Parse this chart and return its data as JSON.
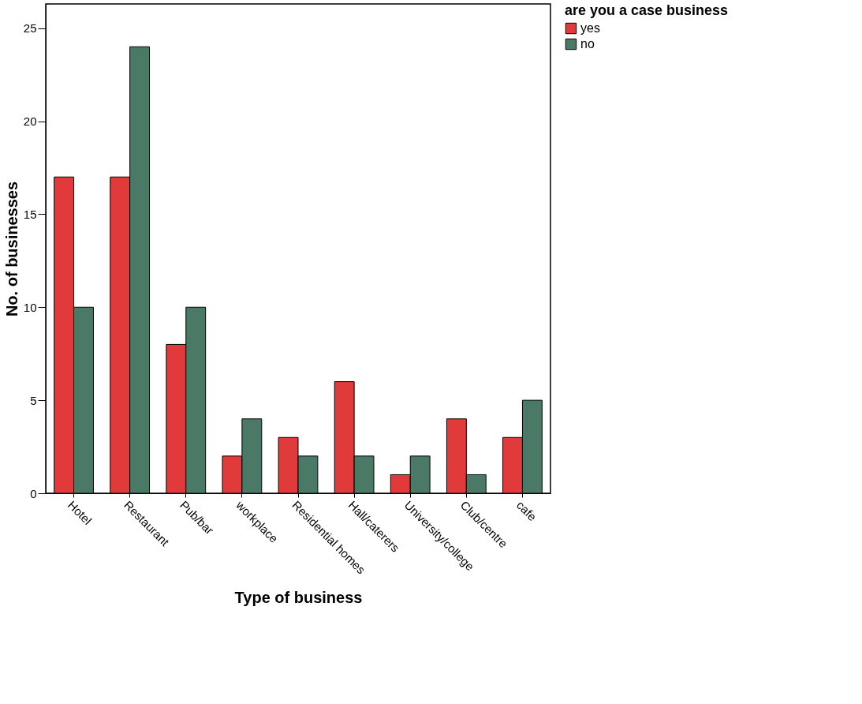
{
  "chart_data": {
    "type": "bar",
    "xlabel": "Type of business",
    "ylabel": "No. of businesses",
    "legend_title": "are you a case business",
    "categories": [
      "Hotel",
      "Restaurant",
      "Pub/bar",
      "workplace",
      "Residential homes",
      "Hall/caterers",
      "University/college",
      "Club/centre",
      "cafe"
    ],
    "series": [
      {
        "name": "yes",
        "color": "#e03a3a",
        "values": [
          17,
          17,
          8,
          2,
          3,
          6,
          1,
          4,
          3
        ]
      },
      {
        "name": "no",
        "color": "#4a7a66",
        "values": [
          10,
          24,
          10,
          4,
          2,
          2,
          2,
          1,
          5
        ]
      }
    ],
    "ylim": [
      0,
      26.3
    ],
    "yticks": [
      0,
      5,
      10,
      15,
      20,
      25
    ],
    "grid": false,
    "legend": "top right"
  }
}
